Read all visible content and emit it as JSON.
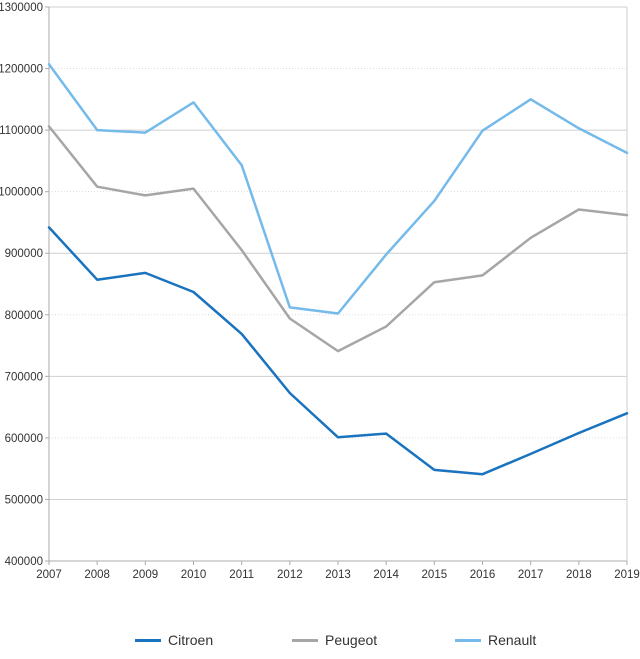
{
  "chart_data": {
    "type": "line",
    "title": "",
    "xlabel": "",
    "ylabel": "",
    "x": [
      2007,
      2008,
      2009,
      2010,
      2011,
      2012,
      2013,
      2014,
      2015,
      2016,
      2017,
      2018,
      2019
    ],
    "series": [
      {
        "name": "Citroen",
        "color": "#1973BE",
        "values": [
          942000,
          857000,
          868000,
          837000,
          769000,
          673000,
          601000,
          607000,
          548000,
          541000,
          574000,
          608000,
          640000
        ]
      },
      {
        "name": "Peugeot",
        "color": "#A6A6A6",
        "values": [
          1106000,
          1008000,
          994000,
          1005000,
          905000,
          794000,
          741000,
          781000,
          853000,
          864000,
          925000,
          971000,
          962000
        ]
      },
      {
        "name": "Renault",
        "color": "#74BAEA",
        "values": [
          1207000,
          1100000,
          1096000,
          1145000,
          1043000,
          812000,
          802000,
          898000,
          985000,
          1099000,
          1150000,
          1103000,
          1063000
        ]
      }
    ],
    "ylim": [
      400000,
      1300000
    ],
    "ytick_step": 100000,
    "grid": true,
    "legend_position": "bottom"
  },
  "styles": {
    "grid_solid_color": "#CFCFCF",
    "grid_dotted_color": "#DCDCDC",
    "axis_color": "#ABABAB",
    "label_color": "#333333",
    "background": "#FFFFFF"
  }
}
